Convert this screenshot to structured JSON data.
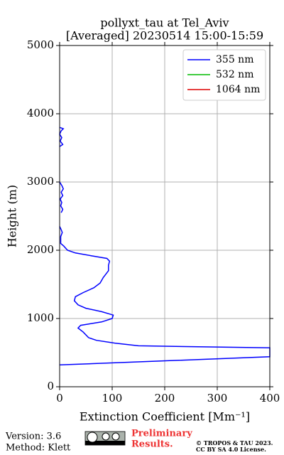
{
  "chart_data": {
    "type": "line",
    "title": "pollyxt_tau at Tel_Aviv",
    "subtitle": "[Averaged] 20230514 15:00-15:59",
    "x_label": "Extinction Coefficient [Mm⁻¹]",
    "y_label": "Height (m)",
    "xlim": [
      0,
      400
    ],
    "xticks": [
      0,
      100,
      200,
      300,
      400
    ],
    "ylim": [
      0,
      5000
    ],
    "yticks": [
      0,
      1000,
      2000,
      3000,
      4000,
      5000
    ],
    "grid": true,
    "legend": "upper right",
    "series": [
      {
        "name": "355 nm",
        "color": "#0000ff",
        "x": [
          0,
          400,
          400,
          150,
          105,
          70,
          55,
          45,
          35,
          40,
          80,
          100,
          102,
          80,
          50,
          35,
          28,
          30,
          45,
          65,
          77,
          83,
          93,
          93,
          95,
          90,
          60,
          30,
          15,
          8,
          2,
          2,
          5,
          3,
          0,
          null,
          3,
          6,
          2,
          4,
          1,
          6,
          3,
          7,
          4,
          0,
          null,
          0,
          6,
          1,
          4,
          0,
          3,
          7,
          0
        ],
        "values": [
          320,
          440,
          570,
          600,
          640,
          680,
          720,
          800,
          860,
          900,
          950,
          1000,
          1050,
          1100,
          1150,
          1200,
          1260,
          1320,
          1380,
          1450,
          1520,
          1600,
          1700,
          1780,
          1840,
          1880,
          1920,
          1960,
          2000,
          2060,
          2100,
          2200,
          2260,
          2300,
          2350,
          null,
          2550,
          2600,
          2650,
          2700,
          2750,
          2800,
          2850,
          2900,
          2950,
          3000,
          null,
          3520,
          3550,
          3600,
          3650,
          3700,
          3750,
          3780,
          3800
        ]
      },
      {
        "name": "532 nm",
        "color": "#00bb00",
        "x": [],
        "values": []
      },
      {
        "name": "1064 nm",
        "color": "#dd0000",
        "x": [],
        "values": []
      }
    ]
  },
  "footer": {
    "version": "Version: 3.6",
    "method": "Method: Klett",
    "preliminary": [
      "Preliminary",
      "Results."
    ],
    "license": [
      "© TROPOS & TAU 2023.",
      "CC BY SA 4.0 License."
    ]
  }
}
